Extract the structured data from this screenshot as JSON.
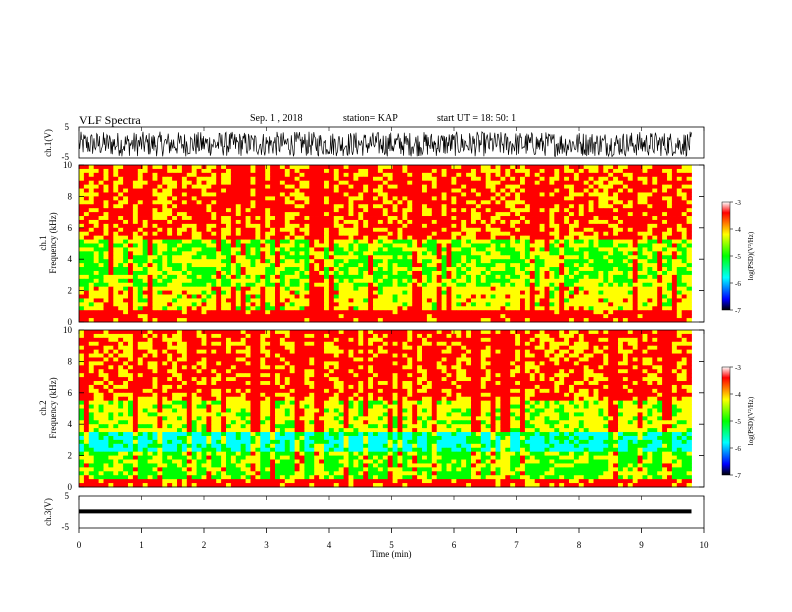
{
  "header": {
    "title": "VLF Spectra",
    "date": "Sep. 1 , 2018",
    "station": "station= KAP",
    "start_ut": "start UT = 18: 50: 1"
  },
  "chart_data": [
    {
      "type": "line",
      "panel": "ch1-waveform",
      "ylabel": "ch.1(V)",
      "ytick_labels": [
        "5",
        "-5"
      ],
      "ylim": [
        -5,
        5
      ],
      "xlim": [
        0,
        10
      ],
      "series": [
        {
          "description_only": true,
          "values_range": [
            -4.5,
            3.5
          ],
          "color": "#000000"
        }
      ]
    },
    {
      "type": "heatmap",
      "panel": "ch1-spectrogram",
      "ylabel": "ch.1\nFrequency (kHz)",
      "ylim": [
        0,
        10
      ],
      "ytick_labels": [
        "0",
        "2",
        "4",
        "6",
        "8",
        "10"
      ],
      "xlim": [
        0,
        9.8
      ],
      "colorbar": {
        "label": "log(PSD)(V²/Hz)",
        "range": [
          -7,
          -3
        ],
        "tick_labels": [
          "-3",
          "-4",
          "-5",
          "-6",
          "-7"
        ]
      }
    },
    {
      "type": "heatmap",
      "panel": "ch2-spectrogram",
      "ylabel": "ch.2\nFrequency (kHz)",
      "ylim": [
        0,
        10
      ],
      "ytick_labels": [
        "0",
        "2",
        "4",
        "6",
        "8",
        "10"
      ],
      "xlim": [
        0,
        9.8
      ],
      "colorbar": {
        "label": "log(PSD)(V²/Hz)",
        "range": [
          -7,
          -3
        ],
        "tick_labels": [
          "-3",
          "-4",
          "-5",
          "-6",
          "-7"
        ]
      }
    },
    {
      "type": "line",
      "panel": "ch3-waveform",
      "ylabel": "ch.3(V)",
      "ytick_labels": [
        "5",
        "-5"
      ],
      "ylim": [
        -5,
        5
      ],
      "xlim": [
        0,
        10
      ],
      "series": [
        {
          "constant_value": 0.2,
          "color": "#000000"
        }
      ]
    }
  ],
  "xaxis": {
    "label": "Time (min)",
    "tick_labels": [
      "0",
      "1",
      "2",
      "3",
      "4",
      "5",
      "6",
      "7",
      "8",
      "9",
      "10"
    ]
  },
  "colors": {
    "high": "#ff0000",
    "mid_high": "#ffff00",
    "mid": "#00ff00",
    "mid_low": "#00ffff",
    "low": "#0000ff",
    "min": "#000000"
  }
}
